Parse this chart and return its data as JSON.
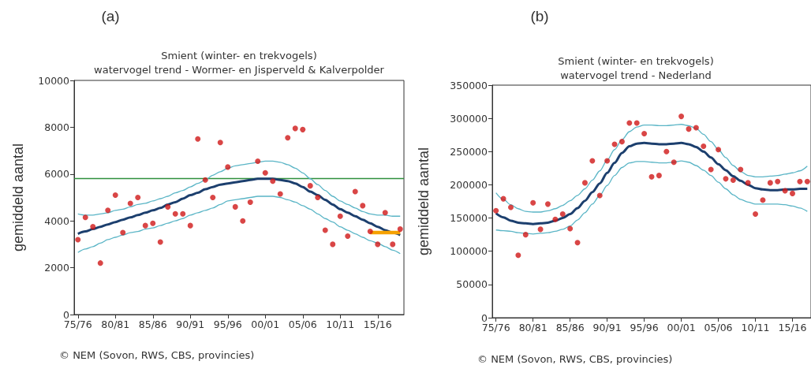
{
  "chart_data": [
    {
      "type": "scatter",
      "title": "Smient (winter- en trekvogels)",
      "subtitle": "watervogel trend - Wormer- en Jisperveld & Kalverpolder",
      "ylabel": "gemiddeld aantal",
      "annotations": [
        "(a)",
        "© NEM (Sovon, RWS, CBS, provincies)"
      ],
      "categories": [
        "75/76",
        null,
        null,
        null,
        null,
        "80/81",
        null,
        null,
        null,
        null,
        "85/86",
        null,
        null,
        null,
        null,
        "90/91",
        null,
        null,
        null,
        null,
        "95/96",
        null,
        null,
        null,
        null,
        "00/01",
        null,
        null,
        null,
        null,
        "05/06",
        null,
        null,
        null,
        null,
        "10/11",
        null,
        null,
        null,
        null,
        "15/16",
        null,
        null,
        null
      ],
      "ylim": [
        0,
        10000
      ],
      "yticks": [
        0,
        2000,
        4000,
        6000,
        8000,
        10000
      ],
      "grid": false,
      "ref_lines": [
        {
          "axis": "y",
          "value": 5800,
          "color": "#2f8f3c"
        }
      ],
      "series": [
        {
          "color": "#d01818",
          "marker": "circle",
          "values": [
            3200,
            4150,
            3750,
            2200,
            4450,
            5100,
            3500,
            4750,
            5000,
            3800,
            3900,
            3100,
            4600,
            4300,
            4300,
            3800,
            7500,
            5750,
            5000,
            7350,
            6300,
            4600,
            4000,
            4800,
            6550,
            6050,
            5700,
            5150,
            7550,
            7950,
            7900,
            5500,
            5000,
            3600,
            3000,
            4200,
            3350,
            5250,
            4650,
            3550,
            3000,
            4350,
            3000,
            3650
          ]
        },
        {
          "type": "line",
          "color": "#5ab5c6",
          "values": [
            4300,
            4250,
            4250,
            4300,
            4350,
            4450,
            4500,
            4600,
            4700,
            4750,
            4850,
            4950,
            5050,
            5200,
            5300,
            5450,
            5600,
            5750,
            5950,
            6100,
            6250,
            6350,
            6400,
            6450,
            6500,
            6550,
            6550,
            6500,
            6400,
            6250,
            6050,
            5800,
            5550,
            5300,
            5050,
            4850,
            4700,
            4550,
            4400,
            4300,
            4250,
            4250,
            4200,
            4200
          ]
        },
        {
          "type": "line",
          "color": "#1c3f6e",
          "values": [
            3450,
            3550,
            3650,
            3750,
            3850,
            3950,
            4050,
            4150,
            4250,
            4350,
            4450,
            4550,
            4700,
            4800,
            4950,
            5100,
            5200,
            5350,
            5450,
            5550,
            5600,
            5650,
            5700,
            5750,
            5800,
            5800,
            5800,
            5750,
            5700,
            5600,
            5450,
            5250,
            5100,
            4900,
            4700,
            4500,
            4350,
            4200,
            4050,
            3900,
            3750,
            3600,
            3500,
            3400
          ]
        },
        {
          "type": "line",
          "color": "#5ab5c6",
          "values": [
            2650,
            2800,
            2900,
            3050,
            3200,
            3300,
            3400,
            3500,
            3550,
            3650,
            3700,
            3800,
            3900,
            4000,
            4100,
            4250,
            4350,
            4450,
            4550,
            4700,
            4850,
            4900,
            4950,
            5000,
            5050,
            5050,
            5050,
            5000,
            4900,
            4800,
            4650,
            4500,
            4300,
            4100,
            3950,
            3750,
            3600,
            3450,
            3300,
            3150,
            3050,
            2900,
            2750,
            2600
          ]
        },
        {
          "type": "line",
          "color": "#f5a100",
          "values": [
            null,
            null,
            null,
            null,
            null,
            null,
            null,
            null,
            null,
            null,
            null,
            null,
            null,
            null,
            null,
            null,
            null,
            null,
            null,
            null,
            null,
            null,
            null,
            null,
            null,
            null,
            null,
            null,
            null,
            null,
            null,
            null,
            null,
            null,
            null,
            null,
            null,
            null,
            null,
            3500,
            3500,
            3500,
            3500,
            3500
          ]
        }
      ]
    },
    {
      "type": "scatter",
      "title": "Smient (winter- en trekvogels)",
      "subtitle": "watervogel trend - Nederland",
      "ylabel": "gemiddeld aantal",
      "annotations": [
        "(b)",
        "© NEM (Sovon, RWS, CBS, provincies)"
      ],
      "categories": [
        "75/76",
        null,
        null,
        null,
        null,
        "80/81",
        null,
        null,
        null,
        null,
        "85/86",
        null,
        null,
        null,
        null,
        "90/91",
        null,
        null,
        null,
        null,
        "95/96",
        null,
        null,
        null,
        null,
        "00/01",
        null,
        null,
        null,
        null,
        "05/06",
        null,
        null,
        null,
        null,
        "10/11",
        null,
        null,
        null,
        null,
        "15/16",
        null,
        null
      ],
      "ylim": [
        0,
        350000
      ],
      "yticks": [
        0,
        50000,
        100000,
        150000,
        200000,
        250000,
        300000,
        350000
      ],
      "grid": false,
      "series": [
        {
          "color": "#d01818",
          "marker": "circle",
          "values": [
            161000,
            179000,
            166000,
            94000,
            125000,
            173000,
            133000,
            171000,
            148000,
            156000,
            134000,
            113000,
            203000,
            236000,
            184000,
            236000,
            261000,
            265000,
            293000,
            293000,
            277000,
            212000,
            214000,
            250000,
            234000,
            303000,
            284000,
            286000,
            258000,
            223000,
            253000,
            209000,
            207000,
            223000,
            203000,
            156000,
            177000,
            203000,
            205000,
            191000,
            187000,
            205000,
            205000
          ]
        },
        {
          "type": "line",
          "color": "#5ab5c6",
          "values": [
            188000,
            178000,
            170000,
            164000,
            160000,
            159000,
            159000,
            161000,
            164000,
            169000,
            176000,
            184000,
            194000,
            207000,
            221000,
            237000,
            253000,
            268000,
            280000,
            287000,
            290000,
            290000,
            289000,
            289000,
            290000,
            291000,
            289000,
            285000,
            276000,
            265000,
            253000,
            241000,
            229000,
            220000,
            214000,
            212000,
            212000,
            213000,
            214000,
            216000,
            218000,
            221000,
            228000
          ]
        },
        {
          "type": "line",
          "color": "#1c3f6e",
          "values": [
            157000,
            151000,
            146000,
            143000,
            142000,
            141000,
            142000,
            143000,
            146000,
            150000,
            156000,
            165000,
            176000,
            189000,
            202000,
            218000,
            233000,
            248000,
            258000,
            262000,
            263000,
            262000,
            261000,
            261000,
            262000,
            263000,
            261000,
            257000,
            250000,
            241000,
            231000,
            222000,
            213000,
            206000,
            200000,
            195000,
            193000,
            192000,
            192000,
            193000,
            193000,
            194000,
            194000
          ]
        },
        {
          "type": "line",
          "color": "#5ab5c6",
          "values": [
            132000,
            131000,
            130000,
            128000,
            127000,
            126000,
            127000,
            128000,
            130000,
            133000,
            138000,
            147000,
            158000,
            171000,
            184000,
            199000,
            214000,
            226000,
            233000,
            235000,
            235000,
            234000,
            233000,
            233000,
            234000,
            236000,
            234000,
            229000,
            222000,
            214000,
            204000,
            194000,
            185000,
            178000,
            174000,
            171000,
            171000,
            171000,
            171000,
            170000,
            168000,
            165000,
            160000
          ]
        }
      ]
    }
  ]
}
